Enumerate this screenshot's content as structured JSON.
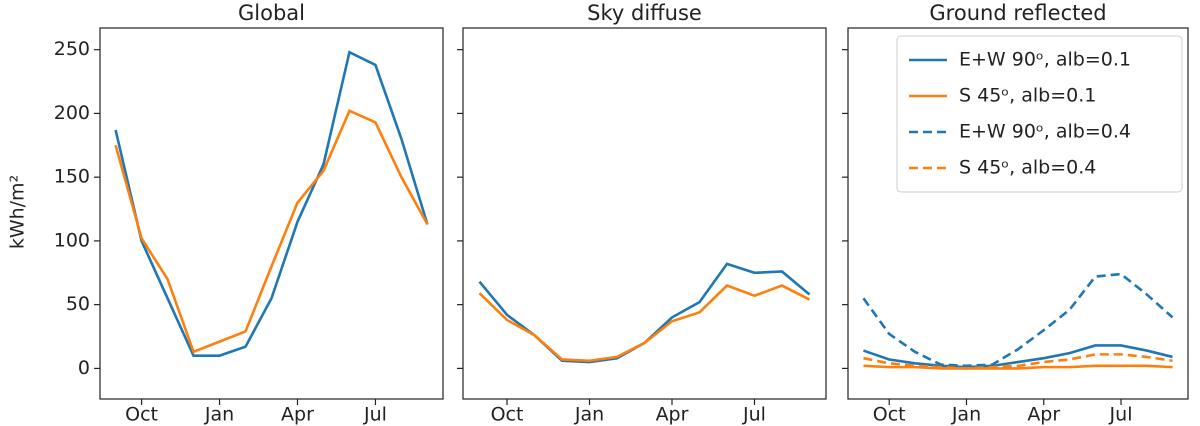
{
  "chart_data": [
    {
      "type": "line",
      "title": "Global",
      "ylabel": "kWh/m²",
      "x": [
        0,
        1,
        2,
        3,
        4,
        5,
        6,
        7,
        8,
        9,
        10,
        11,
        12
      ],
      "xlim": [
        -0.6,
        12.6
      ],
      "xticks": [
        {
          "value": 1,
          "label": "Oct"
        },
        {
          "value": 4,
          "label": "Jan"
        },
        {
          "value": 7,
          "label": "Apr"
        },
        {
          "value": 10,
          "label": "Jul"
        }
      ],
      "ylim": [
        -24,
        267
      ],
      "yticks": [
        0,
        50,
        100,
        150,
        200,
        250
      ],
      "series": [
        {
          "color": "#1f77b4",
          "dashed": false,
          "values": [
            187,
            100,
            55,
            10,
            10,
            17,
            55,
            115,
            160,
            248,
            238,
            180,
            113
          ]
        },
        {
          "color": "#ff7f0e",
          "dashed": false,
          "values": [
            175,
            102,
            70,
            13,
            21,
            29,
            80,
            130,
            155,
            202,
            193,
            150,
            113
          ]
        }
      ]
    },
    {
      "type": "line",
      "title": "Sky diffuse",
      "x": [
        0,
        1,
        2,
        3,
        4,
        5,
        6,
        7,
        8,
        9,
        10,
        11,
        12
      ],
      "xlim": [
        -0.6,
        12.6
      ],
      "xticks": [
        {
          "value": 1,
          "label": "Oct"
        },
        {
          "value": 4,
          "label": "Jan"
        },
        {
          "value": 7,
          "label": "Apr"
        },
        {
          "value": 10,
          "label": "Jul"
        }
      ],
      "series": [
        {
          "color": "#1f77b4",
          "dashed": false,
          "values": [
            68,
            42,
            26,
            6,
            5,
            8,
            20,
            40,
            52,
            82,
            75,
            76,
            58
          ]
        },
        {
          "color": "#ff7f0e",
          "dashed": false,
          "values": [
            59,
            38,
            26,
            7,
            6,
            9,
            20,
            37,
            44,
            65,
            57,
            65,
            54
          ]
        }
      ]
    },
    {
      "type": "line",
      "title": "Ground reflected",
      "x": [
        0,
        1,
        2,
        3,
        4,
        5,
        6,
        7,
        8,
        9,
        10,
        11,
        12
      ],
      "xlim": [
        -0.6,
        12.6
      ],
      "xticks": [
        {
          "value": 1,
          "label": "Oct"
        },
        {
          "value": 4,
          "label": "Jan"
        },
        {
          "value": 7,
          "label": "Apr"
        },
        {
          "value": 10,
          "label": "Jul"
        }
      ],
      "legend": "upper right",
      "series": [
        {
          "name": "E+W 90ᵒ, alb=0.1",
          "color": "#1f77b4",
          "dashed": false,
          "values": [
            14,
            7,
            4,
            2,
            1,
            2,
            5,
            8,
            12,
            18,
            18,
            14,
            9
          ]
        },
        {
          "name": "S 45ᵒ, alb=0.1",
          "color": "#ff7f0e",
          "dashed": false,
          "values": [
            2,
            1,
            1,
            0,
            0,
            0,
            0,
            1,
            1,
            2,
            2,
            2,
            1
          ]
        },
        {
          "name": "E+W 90ᵒ, alb=0.4",
          "color": "#1f77b4",
          "dashed": true,
          "values": [
            55,
            27,
            13,
            3,
            2,
            3,
            15,
            30,
            46,
            72,
            74,
            58,
            40
          ]
        },
        {
          "name": "S 45ᵒ, alb=0.4",
          "color": "#ff7f0e",
          "dashed": true,
          "values": [
            8,
            4,
            2,
            1,
            0,
            1,
            2,
            5,
            7,
            11,
            11,
            9,
            6
          ]
        }
      ]
    }
  ]
}
